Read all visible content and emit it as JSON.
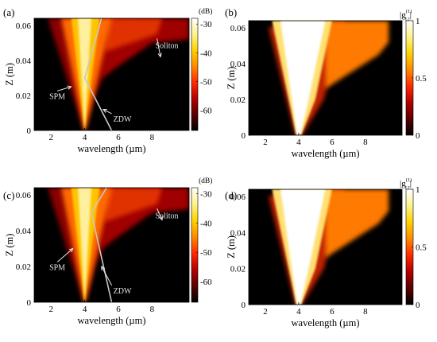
{
  "colormaps": {
    "hot": [
      "#000000",
      "#5a0000",
      "#b30000",
      "#ff2a00",
      "#ff8a00",
      "#ffd200",
      "#fff38a",
      "#ffffff"
    ]
  },
  "chart_data": [
    {
      "id": "a",
      "panel_label": "(a)",
      "type": "heatmap",
      "xlabel": "wavelength (µm)",
      "ylabel": "Z (m)",
      "x_ticks": [
        "2",
        "4",
        "6",
        "8"
      ],
      "x_tick_values": [
        2,
        4,
        6,
        8
      ],
      "xlim": [
        1,
        10.2
      ],
      "y_ticks": [
        "0",
        "0.02",
        "0.04",
        "0.06"
      ],
      "y_tick_values": [
        0,
        0.02,
        0.04,
        0.06
      ],
      "ylim": [
        0,
        0.064
      ],
      "colorbar": {
        "unit_label": "(dB)",
        "ticks": [
          "-30",
          "-40",
          "-50",
          "-60"
        ],
        "tick_values": [
          -30,
          -40,
          -50,
          -60
        ],
        "range": [
          -67,
          -28
        ]
      },
      "zdw_line": [
        [
          5.6,
          0
        ],
        [
          4.0,
          0.03
        ],
        [
          5.0,
          0.064
        ]
      ],
      "annotations": [
        {
          "text": "SPM",
          "tip": [
            3.2,
            0.025
          ],
          "text_at": [
            1.9,
            0.018
          ]
        },
        {
          "text": "ZDW",
          "tip": [
            5.1,
            0.012
          ],
          "text_at": [
            5.7,
            0.005
          ]
        },
        {
          "text": "Soliton",
          "tip": [
            8.5,
            0.042
          ],
          "text_at": [
            8.2,
            0.047
          ]
        }
      ]
    },
    {
      "id": "b",
      "panel_label": "(b)",
      "type": "heatmap",
      "xlabel": "wavelength (µm)",
      "ylabel": "Z (m)",
      "x_ticks": [
        "2",
        "4",
        "6",
        "8"
      ],
      "x_tick_values": [
        2,
        4,
        6,
        8
      ],
      "xlim": [
        1,
        10.2
      ],
      "y_ticks": [
        "0",
        "0.02",
        "0.04",
        "0.06"
      ],
      "y_tick_values": [
        0,
        0.02,
        0.04,
        0.06
      ],
      "ylim": [
        0,
        0.064
      ],
      "colorbar": {
        "label_base": "|g",
        "label_sup": "(1)",
        "label_sub": "12",
        "ticks": [
          "1",
          "0.5",
          "0"
        ],
        "tick_values": [
          1,
          0.5,
          0
        ],
        "range": [
          0,
          1
        ]
      }
    },
    {
      "id": "c",
      "panel_label": "(c)",
      "type": "heatmap",
      "xlabel": "wavelength (µm)",
      "ylabel": "Z (m)",
      "x_ticks": [
        "2",
        "4",
        "6",
        "8"
      ],
      "x_tick_values": [
        2,
        4,
        6,
        8
      ],
      "xlim": [
        1,
        10.2
      ],
      "y_ticks": [
        "0",
        "0.02",
        "0.04",
        "0.06"
      ],
      "y_tick_values": [
        0,
        0.02,
        0.04,
        0.06
      ],
      "ylim": [
        0,
        0.064
      ],
      "colorbar": {
        "unit_label": "(dB)",
        "ticks": [
          "-30",
          "-40",
          "-50",
          "-60"
        ],
        "tick_values": [
          -30,
          -40,
          -50,
          -60
        ],
        "range": [
          -67,
          -28
        ]
      },
      "zdw_line": [
        [
          5.6,
          0
        ],
        [
          4.4,
          0.05
        ],
        [
          5.3,
          0.064
        ]
      ],
      "annotations": [
        {
          "text": "SPM",
          "tip": [
            3.3,
            0.03
          ],
          "text_at": [
            1.9,
            0.018
          ]
        },
        {
          "text": "ZDW",
          "tip": [
            5.0,
            0.02
          ],
          "text_at": [
            5.7,
            0.005
          ]
        },
        {
          "text": "Soliton",
          "tip": [
            8.6,
            0.046
          ],
          "text_at": [
            8.2,
            0.047
          ]
        }
      ]
    },
    {
      "id": "d",
      "panel_label": "(d)",
      "type": "heatmap",
      "xlabel": "wavelength (µm)",
      "ylabel": "Z (m)",
      "x_ticks": [
        "2",
        "4",
        "6",
        "8"
      ],
      "x_tick_values": [
        2,
        4,
        6,
        8
      ],
      "xlim": [
        1,
        10.2
      ],
      "y_ticks": [
        "0",
        "0.02",
        "0.04",
        "0.06"
      ],
      "y_tick_values": [
        0,
        0.02,
        0.04,
        0.06
      ],
      "ylim": [
        0,
        0.064
      ],
      "colorbar": {
        "label_base": "|g",
        "label_sup": "(1)",
        "label_sub": "12",
        "ticks": [
          "1",
          "0.5",
          "0"
        ],
        "tick_values": [
          1,
          0.5,
          0
        ],
        "range": [
          0,
          1
        ]
      }
    }
  ]
}
